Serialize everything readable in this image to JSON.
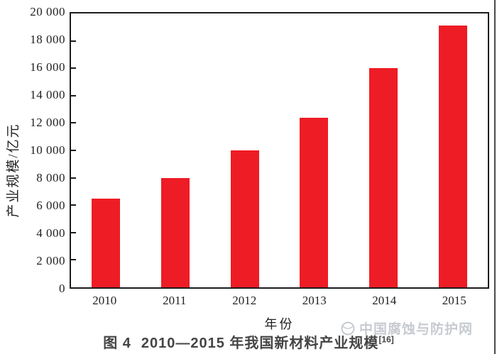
{
  "figure": {
    "caption": {
      "label": "图 4",
      "title": "2010—2015 年我国新材料产业规模",
      "ref": "[16]"
    },
    "watermark": "中国腐蚀与防护网"
  },
  "colors": {
    "bar": "#ee1c25",
    "axis": "#1c1c1c",
    "watermark": "#c7cbd1"
  },
  "chart_data": {
    "type": "bar",
    "title": "",
    "categories": [
      "2010",
      "2011",
      "2012",
      "2013",
      "2014",
      "2015"
    ],
    "values": [
      6500,
      8000,
      10000,
      12400,
      16000,
      19100
    ],
    "xlabel": "年份",
    "ylabel": "产业规模/亿元",
    "ylim": [
      0,
      20000
    ],
    "y_tick_step": 2000,
    "y_tick_labels": [
      "0",
      "2 000",
      "4 000",
      "6 000",
      "8 000",
      "10 000",
      "12 000",
      "14 000",
      "16 000",
      "18 000",
      "20 000"
    ],
    "grid": false,
    "legend": null,
    "bar_color": "#ee1c25"
  }
}
